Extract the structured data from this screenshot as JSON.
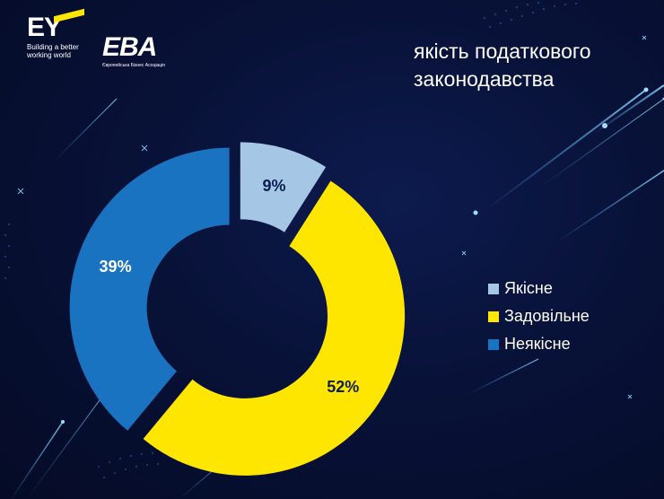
{
  "branding": {
    "ey_logo_text": "EY",
    "ey_tagline_line1": "Building a better",
    "ey_tagline_line2": "working world",
    "eba_logo_text": "EBA",
    "eba_subtitle": "Європейська Бізнес Асоціація"
  },
  "title_lines": [
    "якість податкового",
    "законодавства"
  ],
  "colors": {
    "background": "#081238",
    "ey_yellow": "#ffe600"
  },
  "chart_data": {
    "type": "pie",
    "variant": "donut",
    "title": "якість податкового законодавства",
    "legend_position": "right",
    "slices": [
      {
        "label": "Якісне",
        "value": 9,
        "display": "9%",
        "color": "#a6c6e6",
        "label_color": "#0b1f4e"
      },
      {
        "label": "Задовільне",
        "value": 52,
        "display": "52%",
        "color": "#ffe600",
        "label_color": "#0b1f4e"
      },
      {
        "label": "Неякісне",
        "value": 39,
        "display": "39%",
        "color": "#1a73c0",
        "label_color": "#ffffff"
      }
    ]
  }
}
